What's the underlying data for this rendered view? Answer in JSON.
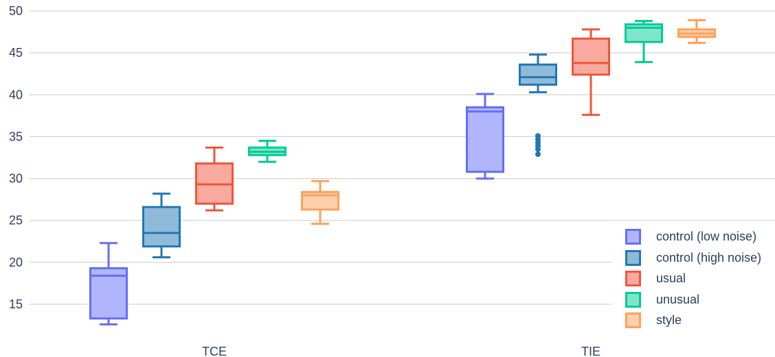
{
  "chart_data": {
    "type": "box",
    "categories": [
      "TCE",
      "TIE"
    ],
    "ylim": [
      11.5,
      50
    ],
    "yticks": [
      15,
      20,
      25,
      30,
      35,
      40,
      45,
      50
    ],
    "ytick_labels": [
      "15",
      "20",
      "25",
      "30",
      "35",
      "40",
      "45",
      "50"
    ],
    "grid": true,
    "legend_position": "bottom-right",
    "series": [
      {
        "name": "control (low noise)",
        "color": "#636efa",
        "fill": "#b1b6fc",
        "boxes": [
          {
            "category": "TCE",
            "min": 12.6,
            "q1": 13.3,
            "median": 18.4,
            "q3": 19.3,
            "max": 22.3,
            "outliers": []
          },
          {
            "category": "TIE",
            "min": 30.0,
            "q1": 30.8,
            "median": 38.0,
            "q3": 38.5,
            "max": 40.1,
            "outliers": []
          }
        ]
      },
      {
        "name": "control (high noise)",
        "color": "#1f77b4",
        "fill": "#8fbbd9",
        "boxes": [
          {
            "category": "TCE",
            "min": 20.6,
            "q1": 21.9,
            "median": 23.5,
            "q3": 26.6,
            "max": 28.2,
            "outliers": []
          },
          {
            "category": "TIE",
            "min": 40.3,
            "q1": 41.2,
            "median": 42.1,
            "q3": 43.6,
            "max": 44.8,
            "outliers": [
              32.9,
              33.5,
              33.9,
              34.3,
              34.7,
              35.1
            ]
          }
        ]
      },
      {
        "name": "usual",
        "color": "#ef553b",
        "fill": "#f7aa9d",
        "boxes": [
          {
            "category": "TCE",
            "min": 26.2,
            "q1": 27.0,
            "median": 29.3,
            "q3": 31.8,
            "max": 33.7,
            "outliers": []
          },
          {
            "category": "TIE",
            "min": 37.6,
            "q1": 42.4,
            "median": 43.8,
            "q3": 46.7,
            "max": 47.8,
            "outliers": []
          }
        ]
      },
      {
        "name": "unusual",
        "color": "#00cc96",
        "fill": "#7fe5ca",
        "boxes": [
          {
            "category": "TCE",
            "min": 32.0,
            "q1": 32.8,
            "median": 33.2,
            "q3": 33.7,
            "max": 34.5,
            "outliers": []
          },
          {
            "category": "TIE",
            "min": 43.9,
            "q1": 46.3,
            "median": 48.0,
            "q3": 48.4,
            "max": 48.8,
            "outliers": []
          }
        ]
      },
      {
        "name": "style",
        "color": "#ffa15a",
        "fill": "#ffd0ac",
        "boxes": [
          {
            "category": "TCE",
            "min": 24.6,
            "q1": 26.3,
            "median": 28.0,
            "q3": 28.4,
            "max": 29.7,
            "outliers": []
          },
          {
            "category": "TIE",
            "min": 46.2,
            "q1": 46.9,
            "median": 47.3,
            "q3": 47.8,
            "max": 48.9,
            "outliers": []
          }
        ]
      }
    ]
  }
}
